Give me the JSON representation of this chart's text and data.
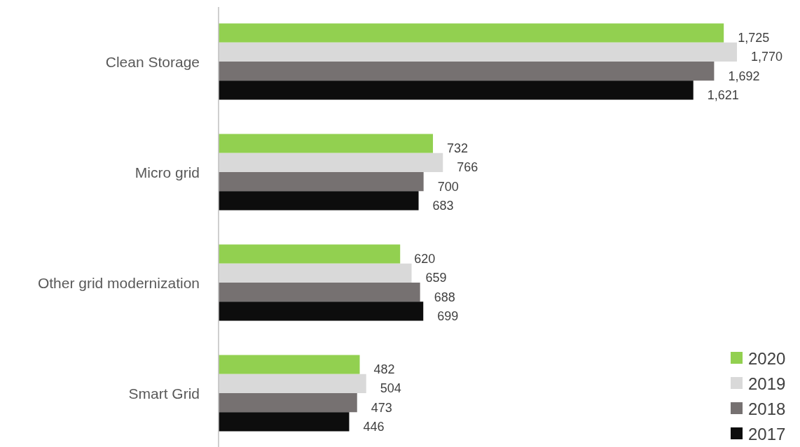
{
  "chart_data": {
    "type": "bar",
    "orientation": "horizontal",
    "categories": [
      "Clean Storage",
      "Micro grid",
      "Other grid modernization",
      "Smart Grid"
    ],
    "series": [
      {
        "name": "2020",
        "color": "#92d050",
        "values": [
          1725,
          732,
          620,
          482
        ],
        "value_labels": [
          "1,725",
          "732",
          "620",
          "482"
        ]
      },
      {
        "name": "2019",
        "color": "#d9d9d9",
        "values": [
          1770,
          766,
          659,
          504
        ],
        "value_labels": [
          "1,770",
          "766",
          "659",
          "504"
        ]
      },
      {
        "name": "2018",
        "color": "#767171",
        "values": [
          1692,
          700,
          688,
          473
        ],
        "value_labels": [
          "1,692",
          "700",
          "688",
          "473"
        ]
      },
      {
        "name": "2017",
        "color": "#0d0d0d",
        "values": [
          1621,
          683,
          699,
          446
        ],
        "value_labels": [
          "1,621",
          "683",
          "699",
          "446"
        ]
      }
    ],
    "legend": "bottom right"
  }
}
